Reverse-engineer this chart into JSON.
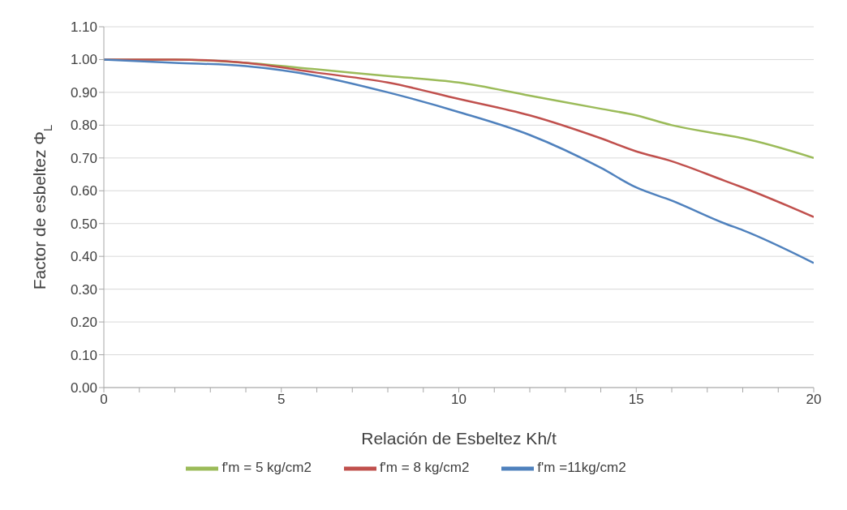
{
  "chart_data": {
    "type": "line",
    "xlabel": "Relación de Esbeltez Kh/t",
    "ylabel": "Factor de esbeltez Φ$_{L}$",
    "x": [
      0,
      2,
      4,
      6,
      8,
      10,
      12,
      14,
      15,
      16,
      17.5,
      18,
      20
    ],
    "series": [
      {
        "name": "f'm = 5 kg/cm2",
        "color": "#9bbb59",
        "values": [
          1.0,
          1.0,
          0.99,
          0.97,
          0.95,
          0.93,
          0.89,
          0.85,
          0.83,
          0.8,
          0.77,
          0.76,
          0.7
        ]
      },
      {
        "name": "f'm = 8 kg/cm2",
        "color": "#c0504d",
        "values": [
          1.0,
          1.0,
          0.99,
          0.96,
          0.93,
          0.88,
          0.83,
          0.76,
          0.72,
          0.69,
          0.63,
          0.61,
          0.52
        ]
      },
      {
        "name": "f'm =11kg/cm2",
        "color": "#4f81bd",
        "values": [
          1.0,
          0.99,
          0.98,
          0.95,
          0.9,
          0.84,
          0.77,
          0.67,
          0.61,
          0.57,
          0.5,
          0.48,
          0.38
        ]
      }
    ],
    "xlim": [
      0,
      20
    ],
    "xticks": [
      0,
      {
        "value": 1,
        "label": null
      },
      {
        "value": 2,
        "label": null
      },
      {
        "value": 3,
        "label": null
      },
      {
        "value": 4,
        "label": null
      },
      5,
      {
        "value": 6,
        "label": null
      },
      {
        "value": 7,
        "label": null
      },
      {
        "value": 8,
        "label": null
      },
      {
        "value": 9,
        "label": null
      },
      10,
      {
        "value": 11,
        "label": null
      },
      {
        "value": 12,
        "label": null
      },
      {
        "value": 13,
        "label": null
      },
      {
        "value": 14,
        "label": null
      },
      15,
      {
        "value": 16,
        "label": null
      },
      {
        "value": 17,
        "label": null
      },
      {
        "value": 18,
        "label": null
      },
      {
        "value": 19,
        "label": null
      },
      20
    ],
    "ylim": [
      0,
      1.1
    ],
    "yticks": [
      {
        "value": 0,
        "label": "0.00"
      },
      {
        "value": 0.1,
        "label": "0.10"
      },
      {
        "value": 0.2,
        "label": "0.20"
      },
      {
        "value": 0.3,
        "label": "0.30"
      },
      {
        "value": 0.4,
        "label": "0.40"
      },
      {
        "value": 0.5,
        "label": "0.50"
      },
      {
        "value": 0.6,
        "label": "0.60"
      },
      {
        "value": 0.7,
        "label": "0.70"
      },
      {
        "value": 0.8,
        "label": "0.80"
      },
      {
        "value": 0.9,
        "label": "0.90"
      },
      {
        "value": 1,
        "label": "1.00"
      },
      {
        "value": 1.1,
        "label": "1.10"
      }
    ],
    "grid": "y",
    "legend": "bottom",
    "marker": "none",
    "line_style": "solid"
  }
}
